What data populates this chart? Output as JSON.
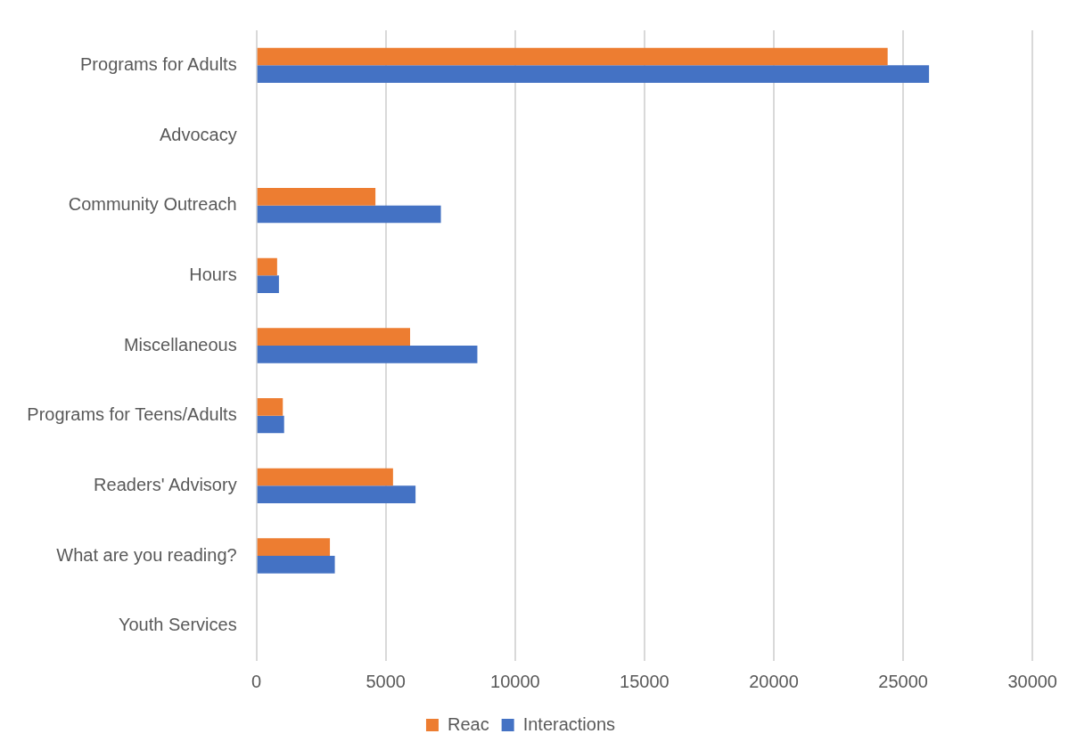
{
  "chart_data": {
    "type": "bar",
    "orientation": "horizontal",
    "categories": [
      "Programs for Adults",
      "Advocacy",
      "Community Outreach",
      "Hours",
      "Miscellaneous",
      "Programs for Teens/Adults",
      "Readers' Advisory",
      "What are you reading?",
      "Youth Services"
    ],
    "series": [
      {
        "name": "Reac",
        "color": "#ed7d31",
        "values": [
          24400,
          0,
          4600,
          800,
          5940,
          1020,
          5280,
          2840,
          0
        ]
      },
      {
        "name": "Interactions",
        "color": "#4472c4",
        "values": [
          26000,
          0,
          7130,
          870,
          8540,
          1070,
          6150,
          3030,
          0
        ]
      }
    ],
    "xlim": [
      0,
      30000
    ],
    "xticks": [
      0,
      5000,
      10000,
      15000,
      20000,
      25000,
      30000
    ],
    "grid": "x",
    "legend": "bottom"
  }
}
